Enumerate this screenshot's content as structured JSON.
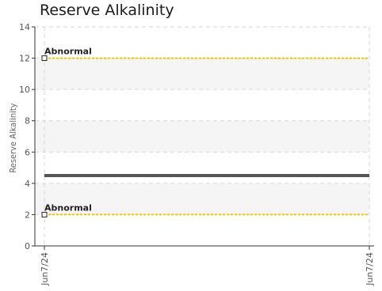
{
  "chart_data": {
    "type": "line",
    "title": "Reserve Alkalinity",
    "ylabel": "Reserve Alkalinity",
    "xlabel": "",
    "ylim": [
      0,
      14
    ],
    "yticks": [
      0,
      2,
      4,
      6,
      8,
      10,
      12,
      14
    ],
    "categories": [
      "Jun7/24",
      "Jun7/24"
    ],
    "grid": true,
    "bands": [
      [
        2,
        4
      ],
      [
        6,
        8
      ],
      [
        10,
        12
      ]
    ],
    "series": [
      {
        "values": [
          4.5,
          4.5
        ],
        "color": "#555555"
      }
    ],
    "reference_lines": [
      {
        "label": "Abnormal",
        "value": 12,
        "color": "#f2c500"
      },
      {
        "label": "Abnormal",
        "value": 2,
        "color": "#f2c500"
      }
    ]
  }
}
